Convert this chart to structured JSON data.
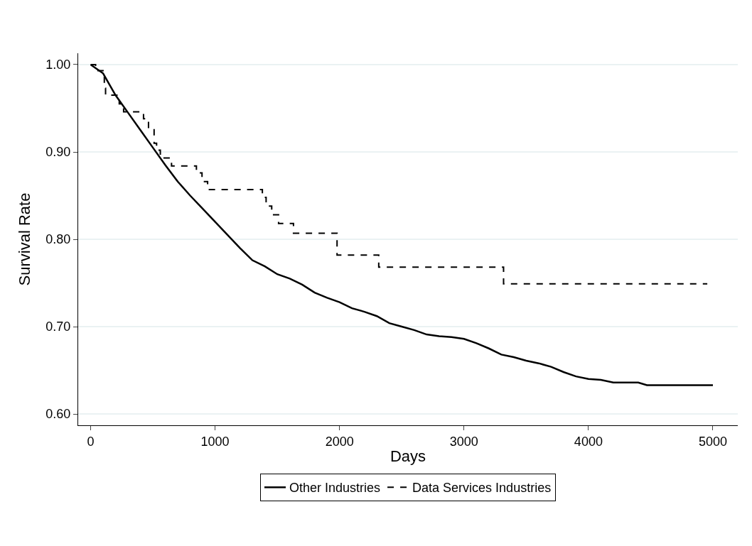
{
  "chart_data": {
    "type": "line",
    "xlabel": "Days",
    "ylabel": "Survival Rate",
    "xlim": [
      -100,
      5200
    ],
    "ylim": [
      0.587,
      1.013
    ],
    "xticks": [
      0,
      1000,
      2000,
      3000,
      4000,
      5000
    ],
    "yticks": [
      {
        "value": 0.6,
        "label": "0.60"
      },
      {
        "value": 0.7,
        "label": "0.70"
      },
      {
        "value": 0.8,
        "label": "0.80"
      },
      {
        "value": 0.9,
        "label": "0.90"
      },
      {
        "value": 1.0,
        "label": "1.00"
      }
    ],
    "grid": "y",
    "legend": "bottom",
    "series": [
      {
        "name": "Other Industries",
        "color": "#000000",
        "line_style": "solid",
        "x": [
          0,
          100,
          200,
          300,
          400,
          500,
          600,
          700,
          800,
          900,
          1000,
          1100,
          1200,
          1300,
          1400,
          1500,
          1600,
          1700,
          1800,
          1900,
          2000,
          2100,
          2200,
          2300,
          2400,
          2500,
          2600,
          2700,
          2800,
          2900,
          3000,
          3100,
          3200,
          3300,
          3400,
          3500,
          3600,
          3700,
          3800,
          3900,
          4000,
          4100,
          4200,
          4400,
          4470,
          5000
        ],
        "values": [
          1.0,
          0.99,
          0.965,
          0.945,
          0.925,
          0.905,
          0.885,
          0.866,
          0.85,
          0.835,
          0.82,
          0.805,
          0.79,
          0.776,
          0.769,
          0.76,
          0.755,
          0.748,
          0.739,
          0.733,
          0.728,
          0.721,
          0.717,
          0.712,
          0.704,
          0.7,
          0.696,
          0.691,
          0.689,
          0.688,
          0.686,
          0.681,
          0.675,
          0.668,
          0.665,
          0.661,
          0.658,
          0.654,
          0.648,
          0.643,
          0.64,
          0.639,
          0.636,
          0.636,
          0.633,
          0.633
        ]
      },
      {
        "name": "Data Services Industries",
        "type": "step",
        "color": "#000000",
        "line_style": "dashed",
        "x": [
          0,
          40,
          110,
          120,
          230,
          265,
          425,
          465,
          510,
          530,
          560,
          650,
          850,
          895,
          940,
          1380,
          1410,
          1455,
          1510,
          1630,
          1980,
          2315,
          3318,
          4955
        ],
        "values": [
          1.0,
          0.993,
          0.973,
          0.965,
          0.955,
          0.946,
          0.938,
          0.928,
          0.91,
          0.902,
          0.893,
          0.884,
          0.876,
          0.866,
          0.857,
          0.848,
          0.838,
          0.828,
          0.818,
          0.807,
          0.782,
          0.768,
          0.749,
          0.749
        ]
      }
    ]
  }
}
